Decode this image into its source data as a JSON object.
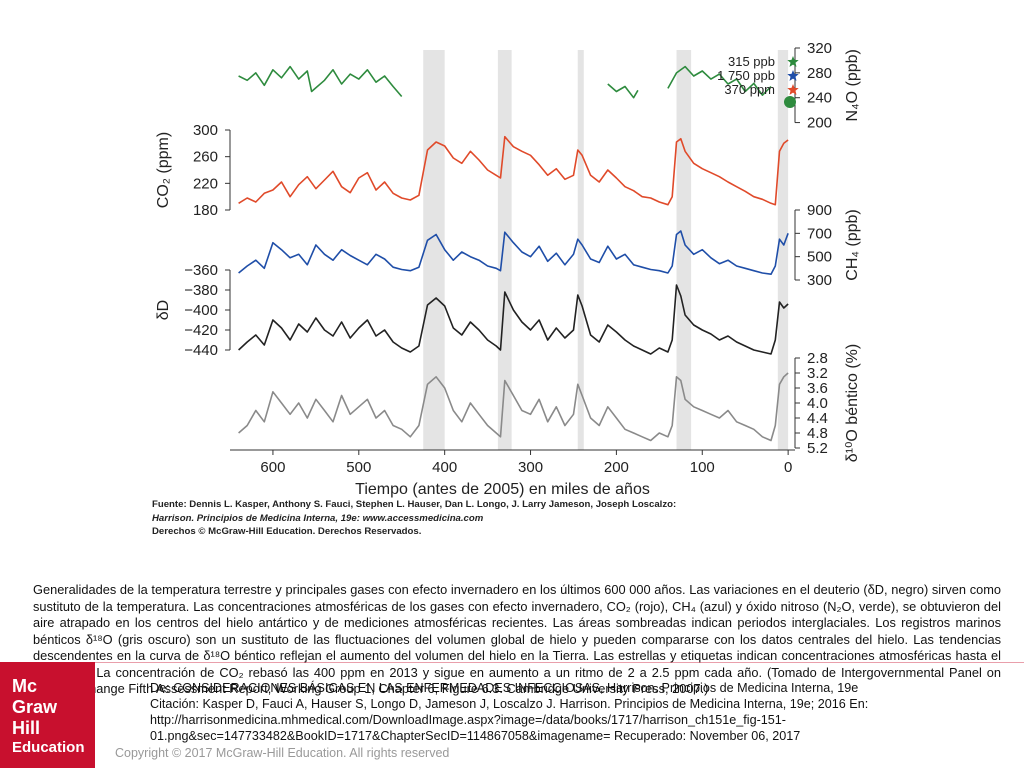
{
  "chart_data": {
    "type": "line",
    "xlabel": "Tiempo (antes de 2005) en miles de años",
    "x_ticks": [
      "600",
      "500",
      "400",
      "300",
      "200",
      "100",
      "0"
    ],
    "xlim": [
      650,
      -8
    ],
    "shaded_periods": [
      [
        425,
        400
      ],
      [
        338,
        322
      ],
      [
        245,
        238
      ],
      [
        130,
        113
      ],
      [
        12,
        0
      ]
    ],
    "panels": [
      {
        "name": "N2O",
        "color": "#2e8b3e",
        "axis": "right",
        "label": "N₄O (ppb)",
        "ylim": [
          180,
          320
        ],
        "ticks": [
          "320",
          "280",
          "240",
          "200"
        ]
      },
      {
        "name": "CO2",
        "color": "#e04a2a",
        "axis": "left",
        "label": "CO₂ (ppm)",
        "ylim": [
          180,
          300
        ],
        "ticks": [
          "300",
          "260",
          "220",
          "180"
        ]
      },
      {
        "name": "CH4",
        "color": "#1f4ea8",
        "axis": "right",
        "label": "CH₄ (ppb)",
        "ylim": [
          300,
          900
        ],
        "ticks": [
          "900",
          "700",
          "500",
          "300"
        ]
      },
      {
        "name": "δD",
        "color": "#222222",
        "axis": "left",
        "label": "δD",
        "ylim": [
          -450,
          -360
        ],
        "ticks": [
          "−360",
          "−380",
          "−400",
          "−420",
          "−440"
        ]
      },
      {
        "name": "δ18O",
        "color": "#8a8a8a",
        "axis": "right",
        "label": "δ¹⁰O béntico (%)",
        "ylim": [
          5.2,
          2.8
        ],
        "ticks": [
          "2.8",
          "3.2",
          "3.6",
          "4.0",
          "4.4",
          "4.8",
          "5.2"
        ]
      }
    ],
    "series": [
      {
        "name": "N2O",
        "x": [
          640,
          630,
          620,
          610,
          600,
          590,
          580,
          570,
          560,
          555,
          540,
          530,
          520,
          510,
          500,
          490,
          480,
          470,
          460,
          450,
          210,
          200,
          190,
          180,
          175,
          140,
          130,
          120,
          110,
          100,
          90,
          80,
          70,
          60,
          50,
          40,
          30,
          20
        ],
        "values": [
          275,
          268,
          280,
          260,
          285,
          272,
          290,
          270,
          283,
          250,
          268,
          285,
          262,
          278,
          270,
          285,
          265,
          275,
          258,
          242,
          262,
          250,
          258,
          240,
          252,
          255,
          280,
          290,
          275,
          283,
          270,
          278,
          262,
          270,
          250,
          263,
          244,
          258
        ]
      },
      {
        "name": "CO2",
        "x": [
          640,
          630,
          620,
          610,
          600,
          590,
          580,
          570,
          560,
          550,
          540,
          530,
          520,
          510,
          500,
          490,
          480,
          470,
          460,
          450,
          440,
          430,
          420,
          410,
          400,
          390,
          380,
          370,
          360,
          350,
          340,
          335,
          330,
          320,
          310,
          300,
          290,
          280,
          270,
          260,
          250,
          245,
          240,
          230,
          220,
          210,
          200,
          190,
          180,
          170,
          160,
          150,
          140,
          135,
          130,
          125,
          120,
          110,
          100,
          90,
          80,
          70,
          60,
          50,
          40,
          30,
          20,
          15,
          10,
          5,
          0
        ],
        "values": [
          190,
          198,
          192,
          205,
          210,
          222,
          200,
          218,
          230,
          212,
          225,
          238,
          215,
          206,
          228,
          236,
          210,
          222,
          205,
          198,
          195,
          202,
          270,
          282,
          276,
          258,
          250,
          268,
          255,
          240,
          232,
          228,
          290,
          275,
          268,
          262,
          248,
          232,
          242,
          226,
          232,
          270,
          262,
          232,
          222,
          240,
          228,
          215,
          209,
          200,
          198,
          192,
          188,
          200,
          282,
          287,
          268,
          250,
          242,
          236,
          230,
          222,
          215,
          208,
          200,
          196,
          190,
          188,
          268,
          280,
          285
        ]
      },
      {
        "name": "CH4",
        "x": [
          640,
          630,
          620,
          610,
          600,
          590,
          580,
          570,
          560,
          550,
          540,
          530,
          520,
          510,
          500,
          490,
          480,
          470,
          460,
          450,
          440,
          430,
          420,
          410,
          400,
          390,
          380,
          370,
          360,
          350,
          340,
          335,
          330,
          320,
          310,
          300,
          290,
          280,
          270,
          260,
          250,
          245,
          240,
          230,
          220,
          210,
          200,
          190,
          180,
          170,
          160,
          150,
          140,
          135,
          130,
          125,
          120,
          110,
          100,
          90,
          80,
          70,
          60,
          50,
          40,
          30,
          20,
          15,
          10,
          5,
          0
        ],
        "values": [
          360,
          420,
          470,
          400,
          620,
          560,
          490,
          520,
          430,
          600,
          520,
          470,
          560,
          510,
          470,
          430,
          520,
          480,
          410,
          390,
          380,
          410,
          640,
          690,
          560,
          470,
          540,
          500,
          470,
          420,
          400,
          380,
          710,
          620,
          540,
          500,
          590,
          460,
          530,
          430,
          520,
          650,
          600,
          480,
          450,
          590,
          480,
          520,
          430,
          410,
          390,
          380,
          360,
          420,
          690,
          720,
          600,
          520,
          560,
          490,
          440,
          470,
          420,
          400,
          380,
          360,
          350,
          420,
          650,
          600,
          700
        ]
      },
      {
        "name": "δD",
        "x": [
          640,
          630,
          620,
          610,
          600,
          590,
          580,
          570,
          560,
          550,
          540,
          530,
          520,
          510,
          500,
          490,
          480,
          470,
          460,
          450,
          440,
          430,
          420,
          410,
          400,
          390,
          380,
          370,
          360,
          350,
          340,
          335,
          330,
          320,
          310,
          300,
          290,
          280,
          270,
          260,
          250,
          245,
          240,
          230,
          220,
          210,
          200,
          190,
          180,
          170,
          160,
          150,
          140,
          135,
          130,
          125,
          120,
          110,
          100,
          90,
          80,
          70,
          60,
          50,
          40,
          30,
          20,
          15,
          10,
          5,
          0
        ],
        "values": [
          -440,
          -432,
          -425,
          -435,
          -410,
          -418,
          -430,
          -414,
          -422,
          -408,
          -420,
          -426,
          -412,
          -428,
          -418,
          -410,
          -426,
          -420,
          -432,
          -438,
          -442,
          -436,
          -395,
          -388,
          -396,
          -418,
          -425,
          -412,
          -420,
          -430,
          -436,
          -440,
          -382,
          -400,
          -412,
          -420,
          -410,
          -430,
          -418,
          -428,
          -420,
          -385,
          -396,
          -425,
          -432,
          -415,
          -422,
          -430,
          -436,
          -440,
          -444,
          -438,
          -442,
          -430,
          -375,
          -386,
          -405,
          -415,
          -420,
          -424,
          -430,
          -426,
          -432,
          -436,
          -440,
          -442,
          -444,
          -430,
          -392,
          -398,
          -394
        ]
      },
      {
        "name": "δ18O",
        "x": [
          640,
          630,
          620,
          610,
          600,
          590,
          580,
          570,
          560,
          550,
          540,
          530,
          520,
          510,
          500,
          490,
          480,
          470,
          460,
          450,
          440,
          430,
          420,
          410,
          400,
          390,
          380,
          370,
          360,
          350,
          340,
          335,
          330,
          320,
          310,
          300,
          290,
          280,
          270,
          260,
          250,
          245,
          240,
          230,
          220,
          210,
          200,
          190,
          180,
          170,
          160,
          150,
          140,
          135,
          130,
          125,
          120,
          110,
          100,
          90,
          80,
          70,
          60,
          50,
          40,
          30,
          20,
          15,
          10,
          5,
          0
        ],
        "values": [
          4.8,
          4.6,
          4.2,
          4.5,
          3.7,
          4.0,
          4.3,
          4.0,
          4.4,
          3.9,
          4.2,
          4.5,
          3.8,
          4.3,
          4.1,
          3.9,
          4.4,
          4.2,
          4.6,
          4.7,
          4.9,
          4.6,
          3.5,
          3.3,
          3.6,
          4.2,
          4.5,
          4.0,
          4.3,
          4.6,
          4.8,
          4.9,
          3.4,
          3.8,
          4.2,
          4.3,
          3.9,
          4.5,
          4.1,
          4.6,
          4.3,
          3.5,
          3.8,
          4.4,
          4.6,
          4.1,
          4.4,
          4.7,
          4.8,
          4.9,
          5.0,
          4.8,
          4.9,
          4.6,
          3.3,
          3.4,
          3.9,
          4.1,
          4.2,
          4.3,
          4.4,
          4.2,
          4.5,
          4.6,
          4.7,
          4.9,
          5.0,
          4.6,
          3.5,
          3.3,
          3.2
        ]
      }
    ],
    "legend": [
      {
        "text": "315 ppb",
        "star_color": "#2e8b3e"
      },
      {
        "text": "1 750 ppb",
        "star_color": "#1f4ea8"
      },
      {
        "text": "370 ppm",
        "star_color": "#e04a2a"
      }
    ]
  },
  "source": {
    "line1": "Fuente: Dennis L. Kasper, Anthony S. Fauci, Stephen L. Hauser, Dan L. Longo, J. Larry Jameson, Joseph Loscalzo:",
    "line2": "Harrison. Principios de Medicina Interna, 19e: www.accessmedicina.com",
    "line3": "Derechos © McGraw-Hill Education. Derechos Reservados."
  },
  "caption": "Generalidades de la temperatura terrestre y principales gases con efecto invernadero en los últimos 600 000 años. Las variaciones en el deuterio (δD, negro) sirven como sustituto de la temperatura. Las concentraciones atmosféricas de los gases con efecto invernadero, CO₂ (rojo), CH₄ (azul) y óxido nitroso (N₂O, verde), se obtuvieron del aire atrapado en los centros del hielo antártico y de mediciones atmosféricas recientes. Las áreas sombreadas indican periodos interglaciales. Los registros marinos bénticos δ¹⁸O (gris oscuro) son un sustituto de las fluctuaciones del volumen global de hielo y pueden compararse con los datos centrales del hielo. Las tendencias descendentes en la curva de δ¹⁸O béntico reflejan el aumento del volumen del hielo en la Tierra. Las estrellas y etiquetas indican concentraciones atmosféricas hasta el año 2000. La concentración de CO₂ rebasó las 400 ppm en 2013 y sigue en aumento a un ritmo de 2 a 2.5 ppm cada año. (Tomado de Intergovernmental Panel on Climate Change Fifth Assessment Report, Working Group 1, Chapter 6, Figure 6.3. Cambridge University Press, 2007.)",
  "citation": "De: CONSIDERACIONES BÁSICAS EN LAS ENFERMEDADES INFECCIOSAS, Harrison. Principios de Medicina Interna, 19e Citación: Kasper D, Fauci A, Hauser S, Longo D, Jameson J, Loscalzo J. Harrison. Principios de Medicina Interna, 19e; 2016 En: http://harrisonmedicina.mhmedical.com/DownloadImage.aspx?image=/data/books/1717/harrison_ch151e_fig-151-01.png&sec=147733482&BookID=1717&ChapterSecID=114867058&imagename= Recuperado: November 06, 2017",
  "copyright": "Copyright © 2017 McGraw-Hill Education. All rights reserved",
  "logo": {
    "l1": "Mc",
    "l2": "Graw",
    "l3": "Hill",
    "l4": "Education"
  }
}
